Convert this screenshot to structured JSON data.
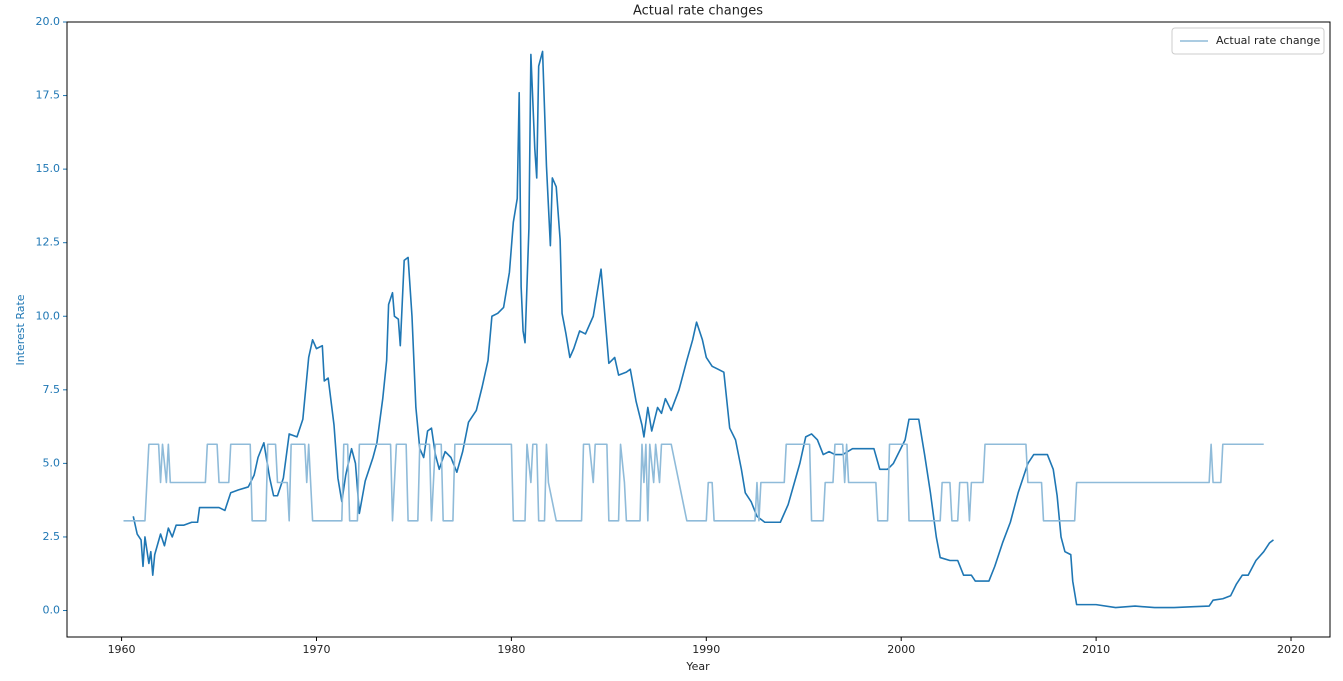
{
  "chart_data": {
    "type": "line",
    "title": "Actual rate changes",
    "xlabel": "Year",
    "ylabel": "Interest Rate",
    "axis_color": "#1f77b4",
    "legend": "upper right",
    "xlim": [
      1957.2,
      2022.0
    ],
    "ylim": [
      -0.9,
      20.0
    ],
    "xticks": [
      1960,
      1970,
      1980,
      1990,
      2000,
      2010,
      2020
    ],
    "yticks": [
      {
        "value": 0,
        "label": "0.0"
      },
      2.5,
      {
        "value": 5,
        "label": "5.0"
      },
      7.5,
      {
        "value": 10,
        "label": "10.0"
      },
      12.5,
      {
        "value": 15,
        "label": "15.0"
      },
      17.5,
      {
        "value": 20,
        "label": "20.0"
      }
    ],
    "series": [
      {
        "color": "#1f77b4",
        "x": [
          1960.6,
          1960.8,
          1961.0,
          1961.1,
          1961.2,
          1961.4,
          1961.5,
          1961.6,
          1961.7,
          1962.0,
          1962.2,
          1962.4,
          1962.6,
          1962.8,
          1963.2,
          1963.6,
          1963.9,
          1964.0,
          1964.5,
          1965.0,
          1965.3,
          1965.6,
          1966.0,
          1966.5,
          1966.8,
          1967.0,
          1967.3,
          1967.6,
          1967.8,
          1968.0,
          1968.3,
          1968.6,
          1969.0,
          1969.3,
          1969.6,
          1969.8,
          1970.0,
          1970.3,
          1970.4,
          1970.6,
          1970.9,
          1971.1,
          1971.3,
          1971.5,
          1971.8,
          1972.0,
          1972.2,
          1972.5,
          1972.9,
          1973.1,
          1973.4,
          1973.6,
          1973.7,
          1973.9,
          1974.0,
          1974.2,
          1974.3,
          1974.5,
          1974.7,
          1974.9,
          1975.1,
          1975.3,
          1975.5,
          1975.7,
          1975.9,
          1976.1,
          1976.3,
          1976.6,
          1976.9,
          1977.2,
          1977.5,
          1977.8,
          1978.2,
          1978.5,
          1978.8,
          1979.0,
          1979.3,
          1979.6,
          1979.9,
          1980.1,
          1980.3,
          1980.4,
          1980.5,
          1980.6,
          1980.7,
          1980.9,
          1981.0,
          1981.2,
          1981.3,
          1981.4,
          1981.6,
          1981.8,
          1982.0,
          1982.1,
          1982.3,
          1982.5,
          1982.6,
          1982.8,
          1983.0,
          1983.2,
          1983.5,
          1983.8,
          1984.2,
          1984.6,
          1984.8,
          1985.0,
          1985.3,
          1985.5,
          1985.9,
          1986.1,
          1986.4,
          1986.7,
          1986.8,
          1987.0,
          1987.2,
          1987.5,
          1987.7,
          1987.9,
          1988.2,
          1988.6,
          1989.0,
          1989.3,
          1989.5,
          1989.8,
          1990.0,
          1990.3,
          1990.6,
          1990.9,
          1991.2,
          1991.5,
          1991.8,
          1992.0,
          1992.3,
          1992.6,
          1993.0,
          1993.5,
          1993.8,
          1994.2,
          1994.5,
          1994.8,
          1995.1,
          1995.4,
          1995.7,
          1996.0,
          1996.3,
          1996.6,
          1997.0,
          1997.5,
          1998.0,
          1998.6,
          1998.9,
          1999.3,
          1999.6,
          1999.9,
          2000.2,
          2000.4,
          2000.9,
          2001.2,
          2001.5,
          2001.8,
          2002.0,
          2002.5,
          2002.9,
          2003.2,
          2003.6,
          2003.8,
          2004.5,
          2004.8,
          2005.2,
          2005.6,
          2006.0,
          2006.5,
          2006.8,
          2007.5,
          2007.8,
          2008.0,
          2008.2,
          2008.4,
          2008.7,
          2008.8,
          2009.0,
          2009.5,
          2010.0,
          2011.0,
          2012.0,
          2013.0,
          2014.0,
          2015.0,
          2015.8,
          2016.0,
          2016.5,
          2016.9,
          2017.2,
          2017.5,
          2017.8,
          2018.2,
          2018.6,
          2018.9,
          2019.1
        ],
        "values": [
          3.2,
          2.6,
          2.4,
          1.5,
          2.5,
          1.6,
          2.0,
          1.2,
          1.9,
          2.6,
          2.2,
          2.8,
          2.5,
          2.9,
          2.9,
          3.0,
          3.0,
          3.5,
          3.5,
          3.5,
          3.4,
          4.0,
          4.1,
          4.2,
          4.6,
          5.2,
          5.7,
          4.5,
          3.9,
          3.9,
          4.5,
          6.0,
          5.9,
          6.5,
          8.6,
          9.2,
          8.9,
          9.0,
          7.8,
          7.9,
          6.3,
          4.5,
          3.7,
          4.6,
          5.5,
          5.0,
          3.3,
          4.4,
          5.2,
          5.7,
          7.2,
          8.5,
          10.4,
          10.8,
          10.0,
          9.9,
          9.0,
          11.9,
          12.0,
          10.0,
          6.9,
          5.5,
          5.2,
          6.1,
          6.2,
          5.3,
          4.8,
          5.4,
          5.2,
          4.7,
          5.4,
          6.4,
          6.8,
          7.6,
          8.5,
          10.0,
          10.1,
          10.3,
          11.5,
          13.2,
          14.0,
          17.6,
          11.0,
          9.5,
          9.1,
          13.0,
          18.9,
          15.7,
          14.7,
          18.5,
          19.0,
          15.1,
          12.4,
          14.7,
          14.4,
          12.6,
          10.1,
          9.4,
          8.6,
          8.9,
          9.5,
          9.4,
          10.0,
          11.6,
          10.0,
          8.4,
          8.6,
          8.0,
          8.1,
          8.2,
          7.1,
          6.3,
          5.9,
          6.9,
          6.1,
          6.9,
          6.7,
          7.2,
          6.8,
          7.5,
          8.5,
          9.2,
          9.8,
          9.2,
          8.6,
          8.3,
          8.2,
          8.1,
          6.2,
          5.8,
          4.8,
          4.0,
          3.7,
          3.2,
          3.0,
          3.0,
          3.0,
          3.6,
          4.3,
          5.0,
          5.9,
          6.0,
          5.8,
          5.3,
          5.4,
          5.3,
          5.3,
          5.5,
          5.5,
          5.5,
          4.8,
          4.8,
          5.0,
          5.4,
          5.8,
          6.5,
          6.5,
          5.3,
          4.0,
          2.5,
          1.8,
          1.7,
          1.7,
          1.2,
          1.2,
          1.0,
          1.0,
          1.5,
          2.3,
          3.0,
          4.0,
          5.0,
          5.3,
          5.3,
          4.8,
          3.9,
          2.5,
          2.0,
          1.9,
          1.0,
          0.2,
          0.2,
          0.2,
          0.1,
          0.15,
          0.1,
          0.1,
          0.13,
          0.15,
          0.35,
          0.4,
          0.5,
          0.9,
          1.2,
          1.2,
          1.7,
          2.0,
          2.3,
          2.4
        ]
      },
      {
        "name": "Actual rate change",
        "color": "#8fbbd9",
        "x": [
          1960.1,
          1961.2,
          1961.4,
          1961.9,
          1962.0,
          1962.1,
          1962.3,
          1962.4,
          1962.5,
          1964.3,
          1964.4,
          1964.9,
          1965.0,
          1965.5,
          1965.6,
          1966.6,
          1966.7,
          1967.4,
          1967.5,
          1967.9,
          1968.0,
          1968.5,
          1968.6,
          1968.7,
          1969.4,
          1969.5,
          1969.6,
          1969.8,
          1971.3,
          1971.4,
          1971.6,
          1971.7,
          1972.1,
          1972.2,
          1973.8,
          1973.9,
          1974.1,
          1974.6,
          1974.7,
          1975.2,
          1975.3,
          1975.8,
          1975.9,
          1976.1,
          1976.4,
          1976.5,
          1977.0,
          1977.1,
          1980.0,
          1980.1,
          1980.7,
          1980.8,
          1981.0,
          1981.1,
          1981.3,
          1981.4,
          1981.7,
          1981.8,
          1981.9,
          1982.3,
          1983.6,
          1983.7,
          1984.0,
          1984.2,
          1984.3,
          1984.9,
          1985.0,
          1985.5,
          1985.6,
          1985.8,
          1985.9,
          1986.6,
          1986.7,
          1986.8,
          1986.9,
          1987.0,
          1987.1,
          1987.3,
          1987.4,
          1987.6,
          1987.7,
          1988.2,
          1989.0,
          1990.0,
          1990.1,
          1990.3,
          1990.4,
          1992.5,
          1992.6,
          1992.7,
          1992.8,
          1994.0,
          1994.1,
          1995.3,
          1995.4,
          1996.0,
          1996.1,
          1996.5,
          1996.6,
          1997.0,
          1997.1,
          1997.2,
          1997.3,
          1998.7,
          1998.8,
          1999.3,
          1999.4,
          2000.3,
          2000.4,
          2002.0,
          2002.1,
          2002.5,
          2002.6,
          2002.9,
          2003.0,
          2003.4,
          2003.5,
          2003.6,
          2004.2,
          2004.3,
          2006.4,
          2006.5,
          2007.2,
          2007.3,
          2008.9,
          2009.0,
          2015.8,
          2015.9,
          2016.0,
          2016.4,
          2016.5,
          2018.6
        ],
        "values": [
          3.05,
          3.05,
          5.65,
          5.65,
          4.35,
          5.65,
          4.35,
          5.65,
          4.35,
          4.35,
          5.65,
          5.65,
          4.35,
          4.35,
          5.65,
          5.65,
          3.05,
          3.05,
          5.65,
          5.65,
          4.35,
          4.35,
          3.05,
          5.65,
          5.65,
          4.35,
          5.65,
          3.05,
          3.05,
          5.65,
          5.65,
          3.05,
          3.05,
          5.65,
          5.65,
          3.05,
          5.65,
          5.65,
          3.05,
          3.05,
          5.65,
          5.65,
          3.05,
          5.65,
          5.65,
          3.05,
          3.05,
          5.65,
          5.65,
          3.05,
          3.05,
          5.65,
          4.35,
          5.65,
          5.65,
          3.05,
          3.05,
          5.65,
          4.35,
          3.05,
          3.05,
          5.65,
          5.65,
          4.35,
          5.65,
          5.65,
          3.05,
          3.05,
          5.65,
          4.35,
          3.05,
          3.05,
          5.65,
          4.35,
          5.65,
          3.05,
          5.65,
          4.35,
          5.65,
          4.35,
          5.65,
          5.65,
          3.05,
          3.05,
          4.35,
          4.35,
          3.05,
          3.05,
          4.35,
          3.05,
          4.35,
          4.35,
          5.65,
          5.65,
          3.05,
          3.05,
          4.35,
          4.35,
          5.65,
          5.65,
          4.35,
          5.65,
          4.35,
          4.35,
          3.05,
          3.05,
          5.65,
          5.65,
          3.05,
          3.05,
          4.35,
          4.35,
          3.05,
          3.05,
          4.35,
          4.35,
          3.05,
          4.35,
          4.35,
          5.65,
          5.65,
          4.35,
          4.35,
          3.05,
          3.05,
          4.35,
          4.35,
          5.65,
          4.35,
          4.35,
          5.65,
          5.65
        ]
      }
    ]
  }
}
